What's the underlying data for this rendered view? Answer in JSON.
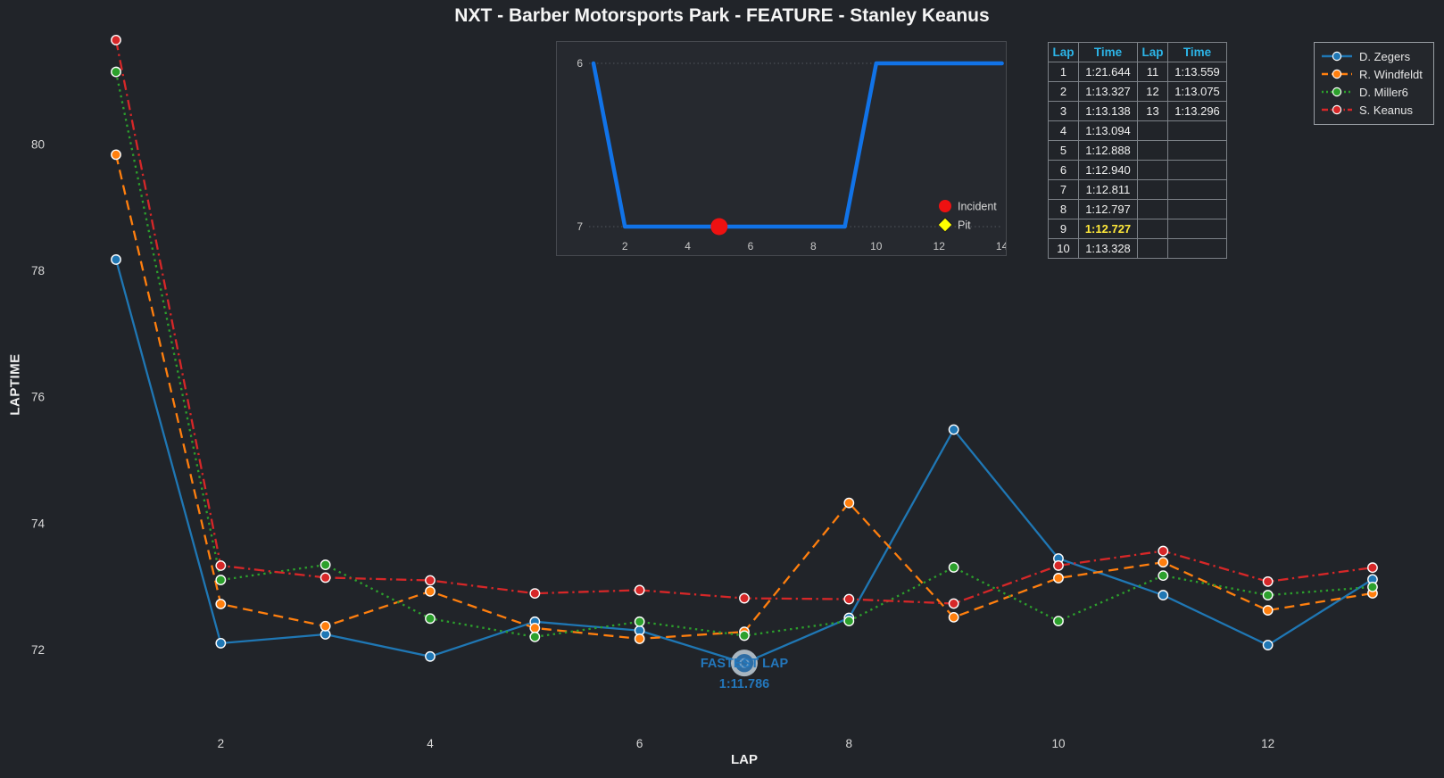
{
  "title": "NXT - Barber Motorsports Park - FEATURE - Stanley Keanus",
  "colors": {
    "background": "#212429",
    "inset_background": "#26292f",
    "blue": "#1f77b4",
    "orange": "#ff7f0e",
    "green": "#2ca02c",
    "red": "#d62728",
    "inset_line": "#1173e8",
    "incident": "#ee1111",
    "pit": "#ffff00",
    "table_header": "#2cb5e8",
    "fastest_yellow": "#ffe93a",
    "annotation_blue": "#2377bc"
  },
  "chart_data": [
    {
      "type": "line",
      "name": "laptime-chart",
      "xlabel": "LAP",
      "ylabel": "LAPTIME",
      "x": [
        1,
        2,
        3,
        4,
        5,
        6,
        7,
        8,
        9,
        10,
        11,
        12,
        13
      ],
      "xticks": [
        2,
        4,
        6,
        8,
        10,
        12
      ],
      "yticks": [
        72,
        74,
        76,
        78,
        80
      ],
      "xlim": [
        0.55,
        13.7
      ],
      "ylim": [
        71.0,
        82.3
      ],
      "grid": false,
      "legend_position": "top-right",
      "series": [
        {
          "name": "D. Zegers",
          "color": "#1f77b4",
          "style": "solid",
          "values": [
            78.17,
            72.1,
            72.24,
            71.89,
            72.44,
            72.3,
            71.786,
            72.5,
            75.48,
            73.44,
            72.86,
            72.07,
            73.11
          ]
        },
        {
          "name": "R. Windfeldt",
          "color": "#ff7f0e",
          "style": "dashed",
          "values": [
            79.83,
            72.72,
            72.37,
            72.92,
            72.34,
            72.17,
            72.28,
            74.32,
            72.51,
            73.13,
            73.38,
            72.62,
            72.89
          ]
        },
        {
          "name": "D. Miller6",
          "color": "#2ca02c",
          "style": "dotted",
          "values": [
            81.14,
            73.1,
            73.34,
            72.49,
            72.2,
            72.44,
            72.22,
            72.45,
            73.3,
            72.45,
            73.17,
            72.86,
            72.99
          ]
        },
        {
          "name": "S. Keanus",
          "color": "#d62728",
          "style": "dashdot",
          "values": [
            81.644,
            73.327,
            73.138,
            73.094,
            72.888,
            72.94,
            72.811,
            72.797,
            72.727,
            73.328,
            73.559,
            73.075,
            73.296
          ]
        }
      ],
      "fastest": {
        "series": "D. Zegers",
        "lap": 7,
        "value": 71.786,
        "label_line1": "FASTEST LAP",
        "label_line2": "1:11.786"
      }
    },
    {
      "type": "line",
      "name": "position-inset-chart",
      "x": [
        1,
        2,
        3,
        4,
        5,
        6,
        7,
        8,
        9,
        10,
        11,
        12,
        13,
        14
      ],
      "values": [
        6,
        7,
        7,
        7,
        7,
        7,
        7,
        7,
        7,
        6,
        6,
        6,
        6,
        6
      ],
      "xticks": [
        2,
        4,
        6,
        8,
        10,
        12,
        14
      ],
      "yticks": [
        6,
        7
      ],
      "y_inverted": true,
      "grid": "horizontal-dotted",
      "incident": {
        "x": 5,
        "y": 7
      },
      "legend": [
        {
          "label": "Incident",
          "marker": "circle",
          "color": "#ee1111"
        },
        {
          "label": "Pit",
          "marker": "diamond",
          "color": "#ffff00"
        }
      ]
    }
  ],
  "lap_table": {
    "headers": [
      "Lap",
      "Time",
      "Lap",
      "Time"
    ],
    "rows": [
      [
        "1",
        "1:21.644",
        "11",
        "1:13.559"
      ],
      [
        "2",
        "1:13.327",
        "12",
        "1:13.075"
      ],
      [
        "3",
        "1:13.138",
        "13",
        "1:13.296"
      ],
      [
        "4",
        "1:13.094",
        "",
        ""
      ],
      [
        "5",
        "1:12.888",
        "",
        ""
      ],
      [
        "6",
        "1:12.940",
        "",
        ""
      ],
      [
        "7",
        "1:12.811",
        "",
        ""
      ],
      [
        "8",
        "1:12.797",
        "",
        ""
      ],
      [
        "9",
        "1:12.727",
        "",
        ""
      ],
      [
        "10",
        "1:13.328",
        "",
        ""
      ]
    ],
    "fastest_lap": "9",
    "fastest_time": "1:12.727"
  },
  "legend": {
    "items": [
      {
        "label": "D. Zegers",
        "color": "#1f77b4",
        "style": "solid"
      },
      {
        "label": "R. Windfeldt",
        "color": "#ff7f0e",
        "style": "dashed"
      },
      {
        "label": "D. Miller6",
        "color": "#2ca02c",
        "style": "dotted"
      },
      {
        "label": "S. Keanus",
        "color": "#d62728",
        "style": "dashdot"
      }
    ]
  }
}
